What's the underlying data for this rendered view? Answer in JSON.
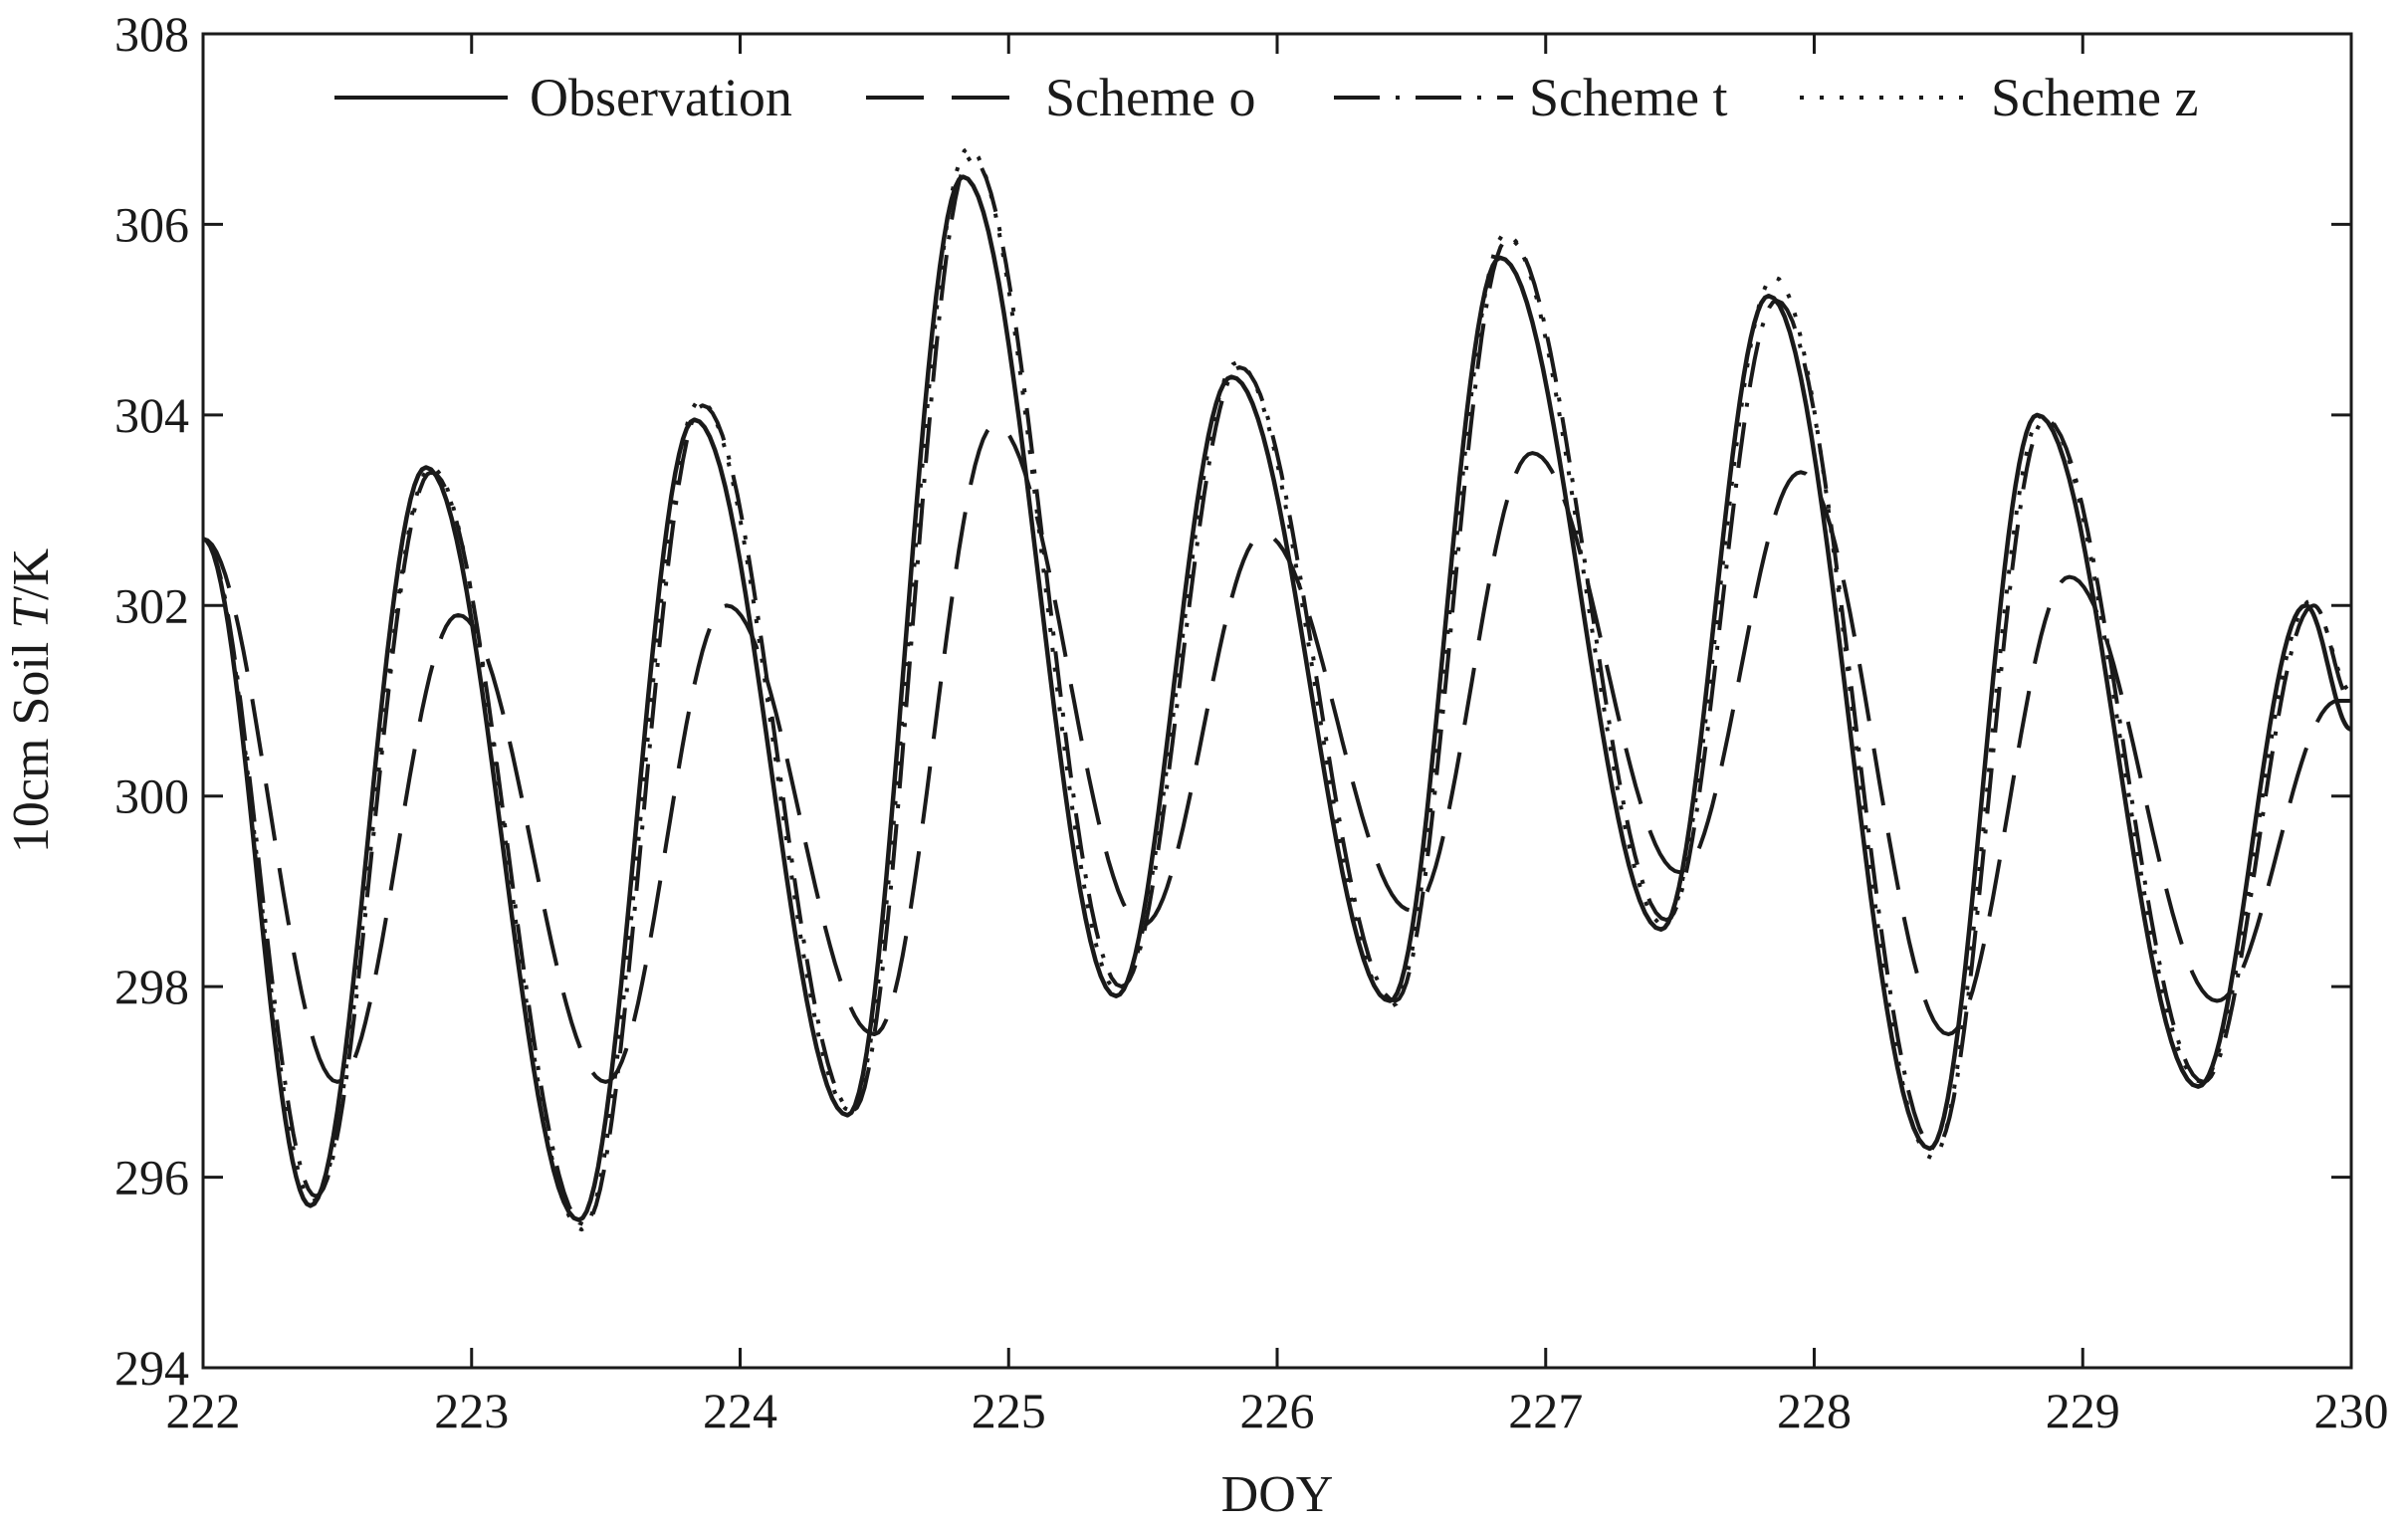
{
  "chart_data": {
    "type": "line",
    "title": "",
    "xlabel": "DOY",
    "ylabel_parts": {
      "prefix": "10cm Soil ",
      "italic": "T",
      "suffix": "/K"
    },
    "xlim": [
      222,
      230
    ],
    "ylim": [
      294,
      308
    ],
    "x_ticks": [
      222,
      223,
      224,
      225,
      226,
      227,
      228,
      229,
      230
    ],
    "y_ticks": [
      294,
      296,
      298,
      300,
      302,
      304,
      306,
      308
    ],
    "grid": false,
    "legend_position": "top",
    "series": [
      {
        "name": "Observation",
        "style": "solid",
        "peaks": [
          [
            222.0,
            302.7
          ],
          [
            222.83,
            303.45
          ],
          [
            223.83,
            303.95
          ],
          [
            224.83,
            306.5
          ],
          [
            225.83,
            304.4
          ],
          [
            226.83,
            305.65
          ],
          [
            227.83,
            305.25
          ],
          [
            228.83,
            304.0
          ],
          [
            229.83,
            302.0
          ]
        ],
        "troughs": [
          [
            222.4,
            295.7
          ],
          [
            223.4,
            295.55
          ],
          [
            224.4,
            296.65
          ],
          [
            225.4,
            297.9
          ],
          [
            226.42,
            297.85
          ],
          [
            227.43,
            298.6
          ],
          [
            228.43,
            296.3
          ],
          [
            229.43,
            296.95
          ]
        ],
        "end": [
          230.0,
          300.7
        ]
      },
      {
        "name": "Scheme o",
        "style": "dashed",
        "peaks": [
          [
            222.0,
            302.7
          ],
          [
            222.95,
            301.9
          ],
          [
            223.95,
            302.0
          ],
          [
            224.95,
            303.9
          ],
          [
            225.95,
            302.75
          ],
          [
            226.95,
            303.6
          ],
          [
            227.95,
            303.4
          ],
          [
            228.95,
            302.3
          ],
          [
            229.95,
            301.0
          ]
        ],
        "troughs": [
          [
            222.5,
            297.0
          ],
          [
            223.5,
            297.0
          ],
          [
            224.5,
            297.5
          ],
          [
            225.5,
            298.65
          ],
          [
            226.5,
            298.8
          ],
          [
            227.5,
            299.2
          ],
          [
            228.5,
            297.5
          ],
          [
            229.5,
            297.85
          ]
        ],
        "end": [
          230.0,
          301.0
        ]
      },
      {
        "name": "Scheme t",
        "style": "dashdot",
        "peaks": [
          [
            222.0,
            302.7
          ],
          [
            222.85,
            303.4
          ],
          [
            223.86,
            304.1
          ],
          [
            224.86,
            306.7
          ],
          [
            225.86,
            304.5
          ],
          [
            226.86,
            305.85
          ],
          [
            227.86,
            305.2
          ],
          [
            228.86,
            303.95
          ],
          [
            229.86,
            302.0
          ]
        ],
        "troughs": [
          [
            222.42,
            295.8
          ],
          [
            223.42,
            295.5
          ],
          [
            224.42,
            296.7
          ],
          [
            225.42,
            298.0
          ],
          [
            226.44,
            297.85
          ],
          [
            227.45,
            298.7
          ],
          [
            228.45,
            296.3
          ],
          [
            229.45,
            297.0
          ]
        ],
        "end": [
          230.0,
          301.0
        ]
      },
      {
        "name": "Scheme z",
        "style": "dotted",
        "peaks": [
          [
            222.0,
            302.7
          ],
          [
            222.85,
            303.45
          ],
          [
            223.85,
            304.15
          ],
          [
            224.85,
            306.8
          ],
          [
            225.85,
            304.55
          ],
          [
            226.85,
            305.9
          ],
          [
            227.85,
            305.45
          ],
          [
            228.85,
            304.0
          ],
          [
            229.85,
            302.05
          ]
        ],
        "troughs": [
          [
            222.41,
            295.75
          ],
          [
            223.41,
            295.45
          ],
          [
            224.41,
            296.7
          ],
          [
            225.41,
            297.95
          ],
          [
            226.43,
            297.8
          ],
          [
            227.44,
            298.65
          ],
          [
            228.44,
            296.2
          ],
          [
            229.44,
            297.0
          ]
        ],
        "end": [
          230.0,
          301.1
        ]
      }
    ]
  }
}
